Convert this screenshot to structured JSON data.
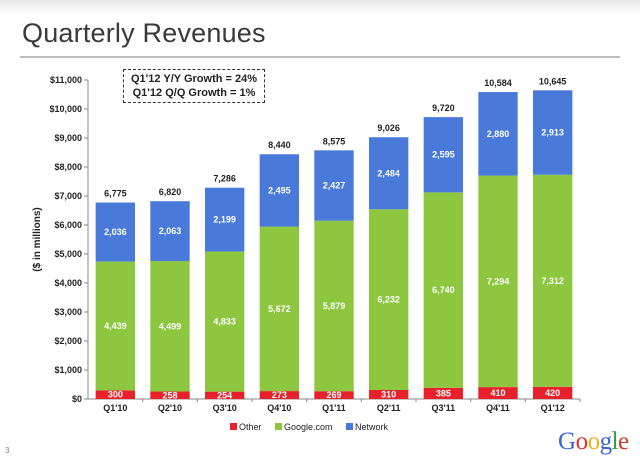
{
  "title": "Quarterly Revenues",
  "callout": {
    "line1": "Q1'12 Y/Y Growth = 24%",
    "line2": "Q1'12 Q/Q Growth = 1%"
  },
  "page_number": "3",
  "logo": {
    "letters": [
      "G",
      "o",
      "o",
      "g",
      "l",
      "e"
    ],
    "colors": [
      "#3b66d9",
      "#d23b2f",
      "#e8b21a",
      "#3b66d9",
      "#2e9e45",
      "#d23b2f"
    ]
  },
  "colors": {
    "other": "#e8202a",
    "google_com": "#8dc63f",
    "network": "#4a7ad9"
  },
  "chart_data": {
    "type": "bar",
    "stacked": true,
    "title": "Quarterly Revenues",
    "xlabel": "",
    "ylabel": "($ in millions)",
    "ylim": [
      0,
      11000
    ],
    "yticks": [
      0,
      1000,
      2000,
      3000,
      4000,
      5000,
      6000,
      7000,
      8000,
      9000,
      10000,
      11000
    ],
    "ytick_labels": [
      "$0",
      "$1,000",
      "$2,000",
      "$3,000",
      "$4,000",
      "$5,000",
      "$6,000",
      "$7,000",
      "$8,000",
      "$9,000",
      "$10,000",
      "$11,000"
    ],
    "categories": [
      "Q1'10",
      "Q2'10",
      "Q3'10",
      "Q4'10",
      "Q1'11",
      "Q2'11",
      "Q3'11",
      "Q4'11",
      "Q1'12"
    ],
    "series": [
      {
        "name": "Other",
        "values": [
          300,
          258,
          254,
          273,
          269,
          310,
          385,
          410,
          420
        ],
        "labels": [
          "300",
          "258",
          "254",
          "273",
          "269",
          "310",
          "385",
          "410",
          "420"
        ]
      },
      {
        "name": "Google.com",
        "values": [
          4439,
          4499,
          4833,
          5672,
          5879,
          6232,
          6740,
          7294,
          7312
        ],
        "labels": [
          "4,439",
          "4,499",
          "4,833",
          "5,672",
          "5,879",
          "6,232",
          "6,740",
          "7,294",
          "7,312"
        ]
      },
      {
        "name": "Network",
        "values": [
          2036,
          2063,
          2199,
          2495,
          2427,
          2484,
          2595,
          2880,
          2913
        ],
        "labels": [
          "2,036",
          "2,063",
          "2,199",
          "2,495",
          "2,427",
          "2,484",
          "2,595",
          "2,880",
          "2,913"
        ]
      }
    ],
    "totals": [
      6775,
      6820,
      7286,
      8440,
      8575,
      9026,
      9720,
      10584,
      10645
    ],
    "total_labels": [
      "6,775",
      "6,820",
      "7,286",
      "8,440",
      "8,575",
      "9,026",
      "9,720",
      "10,584",
      "10,645"
    ],
    "legend": [
      "Other",
      "Google.com",
      "Network"
    ],
    "legend_position": "bottom-center",
    "grid": false
  }
}
